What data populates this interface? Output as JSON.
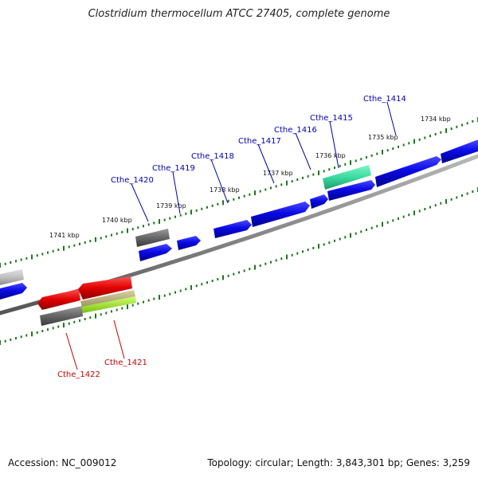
{
  "title": "Clostridium thermocellum ATCC 27405, complete genome",
  "accession_text": "Accession: NC_009012",
  "topology_text": "Topology: circular; Length: 3,843,301 bp; Genes: 3,259",
  "colors": {
    "backbone": "#8a8a8a",
    "gene_blue": "#0a0ae0",
    "gene_gray": "#6a6a6a",
    "gene_lightgray": "#bdbdbd",
    "gene_red": "#e00000",
    "gene_teal": "#3adba0",
    "gene_khaki": "#b8b07a",
    "gene_lime": "#a6f22c",
    "tick": "#1a7a1a",
    "label_blue": "#0000bb",
    "label_red": "#cc0000"
  },
  "tick_labels": [
    {
      "text": "1734 kbp"
    },
    {
      "text": "1735 kbp"
    },
    {
      "text": "1736 kbp"
    },
    {
      "text": "1737 kbp"
    },
    {
      "text": "1738 kbp"
    },
    {
      "text": "1739 kbp"
    },
    {
      "text": "1740 kbp"
    },
    {
      "text": "1741 kbp"
    }
  ],
  "gene_labels": [
    {
      "text": "Cthe_1414",
      "color": "blue"
    },
    {
      "text": "Cthe_1415",
      "color": "blue"
    },
    {
      "text": "Cthe_1416",
      "color": "blue"
    },
    {
      "text": "Cthe_1417",
      "color": "blue"
    },
    {
      "text": "Cthe_1418",
      "color": "blue"
    },
    {
      "text": "Cthe_1419",
      "color": "blue"
    },
    {
      "text": "Cthe_1420",
      "color": "blue"
    },
    {
      "text": "Cthe_1421",
      "color": "red"
    },
    {
      "text": "Cthe_1422",
      "color": "red"
    }
  ]
}
